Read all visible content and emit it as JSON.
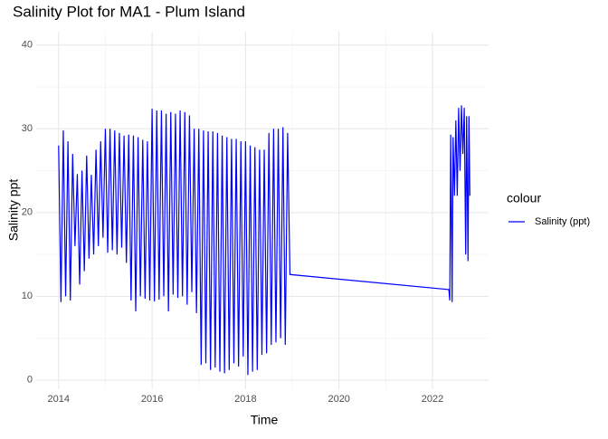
{
  "chart_data": {
    "type": "line",
    "title": "Salinity Plot for MA1 - Plum Island",
    "x_label": "Time",
    "y_label": "Salinity ppt",
    "legend_title": "colour",
    "x": [
      2014.0,
      2014.05,
      2014.1,
      2014.15,
      2014.2,
      2014.25,
      2014.3,
      2014.35,
      2014.4,
      2014.45,
      2014.5,
      2014.55,
      2014.6,
      2014.65,
      2014.7,
      2014.75,
      2014.8,
      2014.85,
      2014.9,
      2014.95,
      2015.0,
      2015.05,
      2015.1,
      2015.15,
      2015.2,
      2015.25,
      2015.3,
      2015.35,
      2015.4,
      2015.45,
      2015.5,
      2015.55,
      2015.6,
      2015.65,
      2015.7,
      2015.75,
      2015.8,
      2015.85,
      2015.9,
      2015.95,
      2016.0,
      2016.05,
      2016.1,
      2016.15,
      2016.2,
      2016.25,
      2016.3,
      2016.35,
      2016.4,
      2016.45,
      2016.5,
      2016.55,
      2016.6,
      2016.65,
      2016.7,
      2016.75,
      2016.8,
      2016.85,
      2016.9,
      2016.95,
      2017.0,
      2017.05,
      2017.1,
      2017.15,
      2017.2,
      2017.25,
      2017.3,
      2017.35,
      2017.4,
      2017.45,
      2017.5,
      2017.55,
      2017.6,
      2017.65,
      2017.7,
      2017.75,
      2017.8,
      2017.85,
      2017.9,
      2017.95,
      2018.0,
      2018.05,
      2018.1,
      2018.15,
      2018.2,
      2018.25,
      2018.3,
      2018.35,
      2018.4,
      2018.45,
      2018.5,
      2018.55,
      2018.6,
      2018.65,
      2018.7,
      2018.75,
      2018.8,
      2018.85,
      2018.9,
      2018.95,
      2022.35,
      2022.37,
      2022.39,
      2022.42,
      2022.44,
      2022.47,
      2022.5,
      2022.53,
      2022.56,
      2022.59,
      2022.62,
      2022.65,
      2022.68,
      2022.71,
      2022.73,
      2022.76,
      2022.78,
      2022.8
    ],
    "series": [
      {
        "name": "Salinity (ppt)",
        "color": "#0000ff",
        "values": [
          28,
          9.3,
          29.8,
          10,
          28.5,
          9.5,
          27,
          16,
          24.6,
          11.4,
          25,
          13,
          26.8,
          14.5,
          24.5,
          15,
          27.5,
          16,
          28.5,
          17,
          30,
          15.2,
          30,
          15.5,
          29.8,
          15,
          29.5,
          15.8,
          29.2,
          14,
          29.3,
          9.5,
          29.2,
          8.2,
          29,
          10,
          28.7,
          9.7,
          28.5,
          9.5,
          32.4,
          9.4,
          32.2,
          9.6,
          32.2,
          10,
          31.8,
          8.2,
          32,
          10.2,
          31.8,
          9.8,
          32.2,
          10,
          32,
          9,
          31.6,
          10.5,
          30,
          8,
          30,
          1.8,
          29.8,
          2,
          29.7,
          1.2,
          29.7,
          1.5,
          29.5,
          1,
          29.2,
          0.8,
          29,
          1.2,
          28.8,
          2,
          28.8,
          1.6,
          28.5,
          2.8,
          28.5,
          0.6,
          28,
          1,
          27.8,
          1.2,
          27.5,
          3,
          27.5,
          3.2,
          29.5,
          4.2,
          30,
          4.5,
          30,
          5,
          30.2,
          4.2,
          29.5,
          12.6,
          10.8,
          9.5,
          29.3,
          9.3,
          29,
          22,
          31,
          22,
          32.5,
          25,
          32.8,
          27,
          32.5,
          15,
          31.5,
          14.2,
          31.5,
          22
        ]
      }
    ],
    "xlim": [
      2013.52,
      2023.2
    ],
    "xticks": [
      2014,
      2016,
      2018,
      2020,
      2022
    ],
    "ylim": [
      -1.1,
      41.6
    ],
    "yticks": [
      0,
      10,
      20,
      30,
      40
    ],
    "grid": true,
    "minor_grid": true,
    "legend_position": "right"
  }
}
